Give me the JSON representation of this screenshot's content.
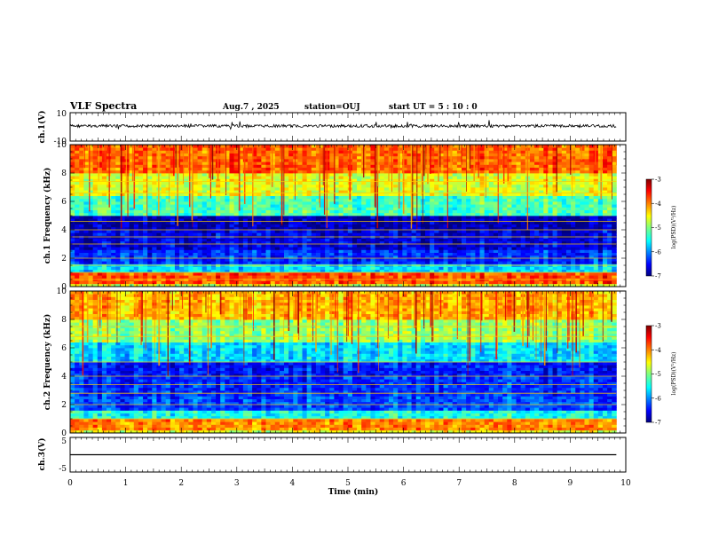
{
  "header": {
    "title": "VLF Spectra",
    "date": "Aug.7 , 2025",
    "station": "station=OUJ",
    "start": "start UT = 5 : 10 : 0"
  },
  "chart_data": [
    {
      "type": "line",
      "panel": "ch1-waveform",
      "ylabel": "ch.1(V)",
      "yticks": [
        "10",
        "-10"
      ],
      "ylim": [
        -10,
        10
      ],
      "xlim": [
        0,
        10
      ],
      "baseline": 0
    },
    {
      "type": "heatmap",
      "panel": "ch1-spectrogram",
      "ylabel": "ch.1 Frequency (kHz)",
      "yticks": [
        "0",
        "2",
        "4",
        "6",
        "8",
        "10"
      ],
      "ylim": [
        0,
        10
      ],
      "xlim": [
        0,
        10
      ],
      "colorbar": {
        "ticks": [
          "-3",
          "-4",
          "-5",
          "-6",
          "-7"
        ],
        "label": "log(PSD)(V²/Hz)",
        "range": [
          -7,
          -3
        ]
      },
      "band_levels": [
        {
          "f": [
            0,
            0.3
          ],
          "level": -4.6
        },
        {
          "f": [
            0.3,
            0.9
          ],
          "level": -3.8
        },
        {
          "f": [
            0.9,
            1.6
          ],
          "level": -5.6
        },
        {
          "f": [
            1.6,
            2.6
          ],
          "level": -6.3
        },
        {
          "f": [
            2.6,
            4.0
          ],
          "level": -6.6
        },
        {
          "f": [
            4.0,
            5.0
          ],
          "level": -6.8
        },
        {
          "f": [
            5.0,
            6.5
          ],
          "level": -5.2
        },
        {
          "f": [
            6.5,
            8.0
          ],
          "level": -4.6
        },
        {
          "f": [
            8.0,
            10.0
          ],
          "level": -3.9
        }
      ],
      "lines_khz": [
        0.5,
        1.0,
        1.5,
        2.0,
        3.0,
        3.5,
        4.0,
        4.6,
        6.6,
        7.4
      ]
    },
    {
      "type": "heatmap",
      "panel": "ch2-spectrogram",
      "ylabel": "ch.2 Frequency (kHz)",
      "yticks": [
        "0",
        "2",
        "4",
        "6",
        "8",
        "10"
      ],
      "ylim": [
        0,
        10
      ],
      "xlim": [
        0,
        10
      ],
      "colorbar": {
        "ticks": [
          "-3",
          "-4",
          "-5",
          "-6",
          "-7"
        ],
        "label": "log(PSD)(V²/Hz)",
        "range": [
          -7,
          -3
        ]
      },
      "band_levels": [
        {
          "f": [
            0,
            0.3
          ],
          "level": -4.6
        },
        {
          "f": [
            0.3,
            0.9
          ],
          "level": -4.0
        },
        {
          "f": [
            0.9,
            1.6
          ],
          "level": -5.4
        },
        {
          "f": [
            1.6,
            2.6
          ],
          "level": -6.2
        },
        {
          "f": [
            2.6,
            4.0
          ],
          "level": -6.3
        },
        {
          "f": [
            4.0,
            5.0
          ],
          "level": -6.4
        },
        {
          "f": [
            5.0,
            6.5
          ],
          "level": -5.6
        },
        {
          "f": [
            6.5,
            8.0
          ],
          "level": -4.9
        },
        {
          "f": [
            8.0,
            10.0
          ],
          "level": -4.2
        }
      ],
      "lines_khz": [
        1.0,
        2.0,
        2.8,
        3.4,
        4.0,
        5.0,
        6.8,
        7.5
      ]
    },
    {
      "type": "line",
      "panel": "ch3-waveform",
      "ylabel": "ch.3(V)",
      "yticks": [
        "5",
        "-5"
      ],
      "ylim": [
        -5,
        5
      ],
      "xlim": [
        0,
        10
      ],
      "baseline": 0
    }
  ],
  "xaxis": {
    "label": "Time (min)",
    "ticks": [
      "0",
      "1",
      "2",
      "3",
      "4",
      "5",
      "6",
      "7",
      "8",
      "9",
      "10"
    ],
    "data_end": 9.83
  },
  "colors": {
    "colormap": [
      "#00007f",
      "#0000ff",
      "#007fff",
      "#00ffff",
      "#7fff7f",
      "#ffff00",
      "#ff7f00",
      "#ff0000",
      "#7f0000"
    ]
  }
}
